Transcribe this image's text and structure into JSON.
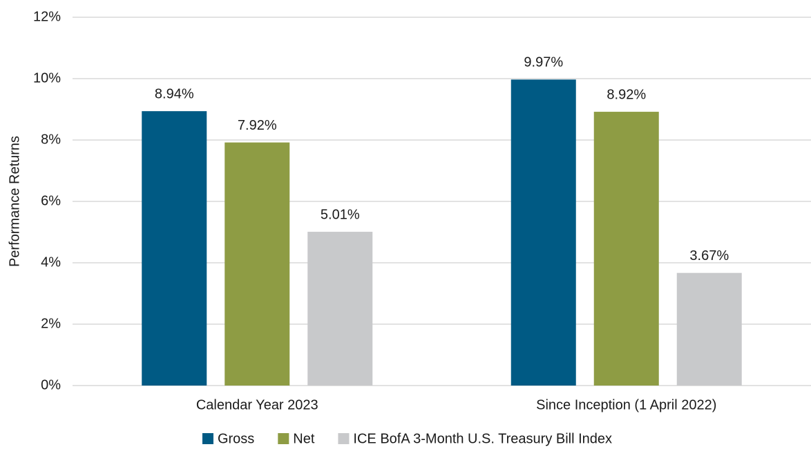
{
  "chart_data": {
    "type": "bar",
    "categories": [
      "Calendar Year 2023",
      "Since Inception (1 April 2022)"
    ],
    "series": [
      {
        "name": "Gross",
        "color": "#005a84",
        "values": [
          8.94,
          9.97
        ],
        "value_labels": [
          "8.94%",
          "9.97%"
        ]
      },
      {
        "name": "Net",
        "color": "#8e9c44",
        "values": [
          7.92,
          8.92
        ],
        "value_labels": [
          "7.92%",
          "8.92%"
        ]
      },
      {
        "name": "ICE BofA 3-Month U.S. Treasury Bill Index",
        "color": "#c8c9cb",
        "values": [
          5.01,
          3.67
        ],
        "value_labels": [
          "5.01%",
          "3.67%"
        ]
      }
    ],
    "ylabel": "Performance Returns",
    "ylim": [
      0,
      12
    ],
    "yticks": [
      {
        "value": 0,
        "label": "0%"
      },
      {
        "value": 2,
        "label": "2%"
      },
      {
        "value": 4,
        "label": "4%"
      },
      {
        "value": 6,
        "label": "6%"
      },
      {
        "value": 8,
        "label": "8%"
      },
      {
        "value": 10,
        "label": "10%"
      },
      {
        "value": 12,
        "label": "12%"
      }
    ],
    "grid": true,
    "legend": "bottom"
  }
}
